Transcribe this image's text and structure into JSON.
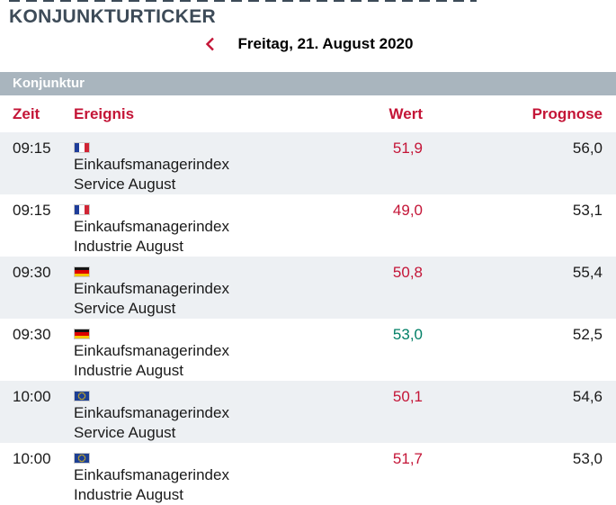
{
  "page": {
    "title": "KONJUNKTURTICKER",
    "nav": {
      "prev_icon": "chevron-left-icon",
      "date": "Freitag, 21. August 2020"
    },
    "section": {
      "header": "Konjunktur"
    },
    "table": {
      "columns": [
        "Zeit",
        "Ereignis",
        "Wert",
        "Prognose"
      ],
      "rows": [
        {
          "time": "09:15",
          "flag": "france",
          "event": "Einkaufsmanagerindex Service August",
          "value": "51,9",
          "trend": "negative",
          "forecast": "56,0"
        },
        {
          "time": "09:15",
          "flag": "france",
          "event": "Einkaufsmanagerindex Industrie August",
          "value": "49,0",
          "trend": "negative",
          "forecast": "53,1"
        },
        {
          "time": "09:30",
          "flag": "germany",
          "event": "Einkaufsmanagerindex Service August",
          "value": "50,8",
          "trend": "negative",
          "forecast": "55,4"
        },
        {
          "time": "09:30",
          "flag": "germany",
          "event": "Einkaufsmanagerindex Industrie August",
          "value": "53,0",
          "trend": "positive",
          "forecast": "52,5"
        },
        {
          "time": "10:00",
          "flag": "eu",
          "event": "Einkaufsmanagerindex Service August",
          "value": "50,1",
          "trend": "negative",
          "forecast": "54,6"
        },
        {
          "time": "10:00",
          "flag": "eu",
          "event": "Einkaufsmanagerindex Industrie August",
          "value": "51,7",
          "trend": "negative",
          "forecast": "53,0"
        }
      ]
    },
    "colors": {
      "accent_red": "#c41537",
      "positive_green": "#007f66",
      "title_slate": "#3d4b58",
      "section_bar": "#a9b5be",
      "row_stripe": "#edf0f3"
    }
  }
}
